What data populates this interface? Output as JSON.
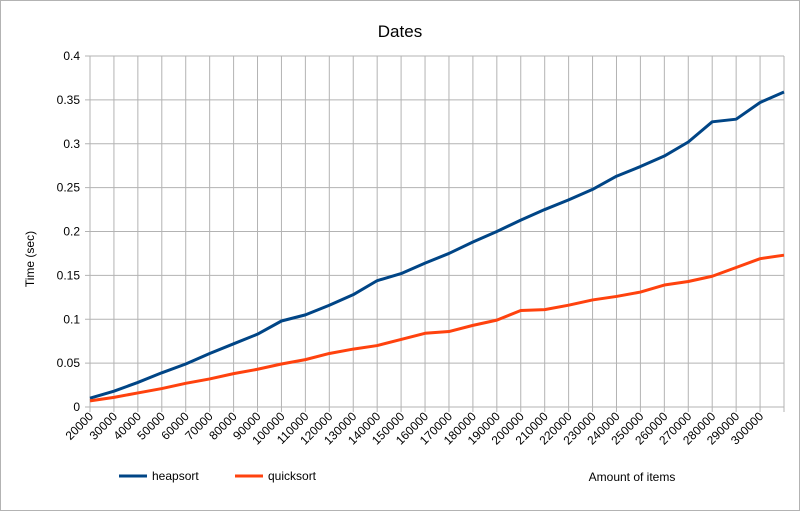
{
  "chart_data": {
    "type": "line",
    "title": "Dates",
    "xlabel": "Amount of items",
    "ylabel": "Time (sec)",
    "ylim": [
      0,
      0.4
    ],
    "yticks": [
      "0",
      "0.05",
      "0.1",
      "0.15",
      "0.2",
      "0.25",
      "0.3",
      "0.35",
      "0.4"
    ],
    "grid": true,
    "legend_position": "bottom-left",
    "categories": [
      "20000",
      "30000",
      "40000",
      "50000",
      "60000",
      "70000",
      "80000",
      "90000",
      "100000",
      "110000",
      "120000",
      "130000",
      "140000",
      "150000",
      "160000",
      "170000",
      "180000",
      "190000",
      "200000",
      "210000",
      "220000",
      "230000",
      "240000",
      "250000",
      "260000",
      "270000",
      "280000",
      "290000",
      "300000",
      ""
    ],
    "series": [
      {
        "name": "heapsort",
        "color": "#004586",
        "values": [
          0.01,
          0.018,
          0.028,
          0.039,
          0.049,
          0.061,
          0.072,
          0.083,
          0.098,
          0.105,
          0.116,
          0.128,
          0.144,
          0.152,
          0.164,
          0.175,
          0.188,
          0.2,
          0.213,
          0.225,
          0.236,
          0.248,
          0.263,
          0.274,
          0.286,
          0.302,
          0.325,
          0.328,
          0.347,
          0.359
        ]
      },
      {
        "name": "quicksort",
        "color": "#ff420e",
        "values": [
          0.007,
          0.011,
          0.016,
          0.021,
          0.027,
          0.032,
          0.038,
          0.043,
          0.049,
          0.054,
          0.061,
          0.066,
          0.07,
          0.077,
          0.084,
          0.086,
          0.093,
          0.099,
          0.11,
          0.111,
          0.116,
          0.122,
          0.126,
          0.131,
          0.139,
          0.143,
          0.149,
          0.159,
          0.169,
          0.173
        ]
      }
    ]
  }
}
